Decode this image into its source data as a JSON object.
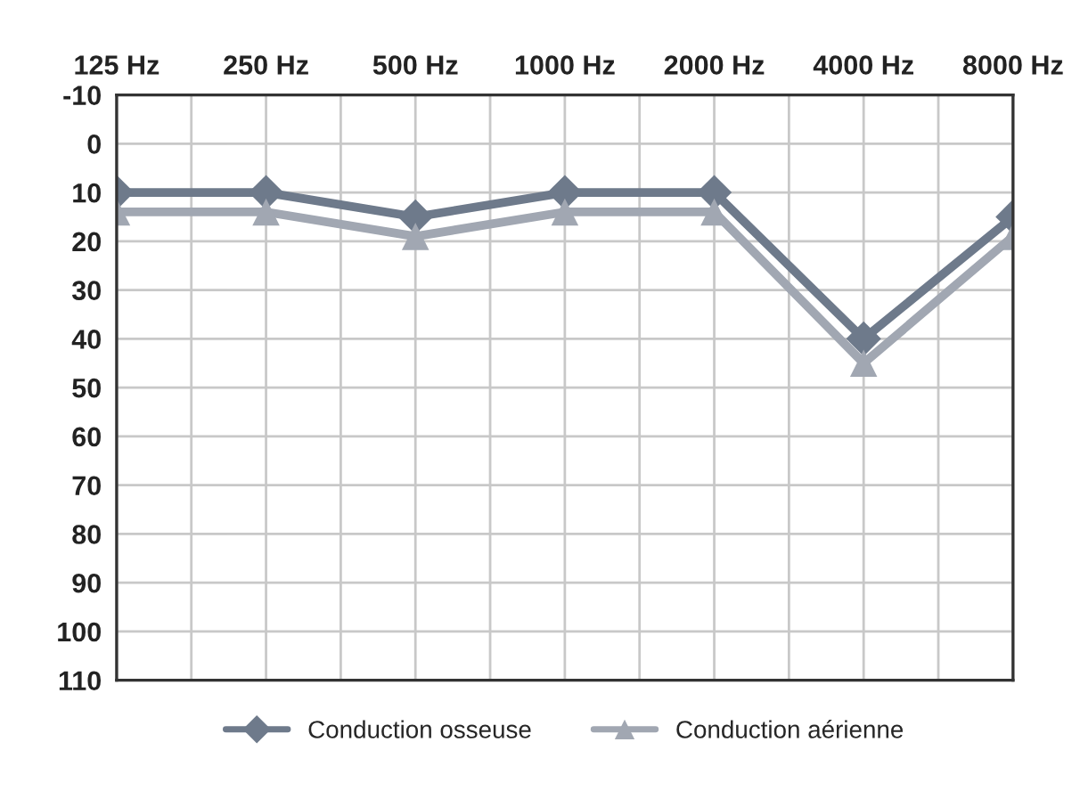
{
  "chart_data": {
    "type": "line",
    "categories": [
      "125 Hz",
      "250 Hz",
      "500 Hz",
      "1000 Hz",
      "2000 Hz",
      "4000 Hz",
      "8000 Hz"
    ],
    "series": [
      {
        "name": "Conduction osseuse",
        "color": "#6e7a8b",
        "marker": "diamond",
        "values": [
          10,
          10,
          15,
          10,
          10,
          40,
          15
        ]
      },
      {
        "name": "Conduction aérienne",
        "color": "#a1a7b2",
        "marker": "triangle",
        "values": [
          14,
          14,
          19,
          14,
          14,
          45,
          19
        ]
      }
    ],
    "ylim": [
      110,
      -10
    ],
    "yticks": [
      -10,
      0,
      10,
      20,
      30,
      40,
      50,
      60,
      70,
      80,
      90,
      100,
      110
    ],
    "grid": true,
    "legend": "bottom",
    "line_style": "solid"
  }
}
